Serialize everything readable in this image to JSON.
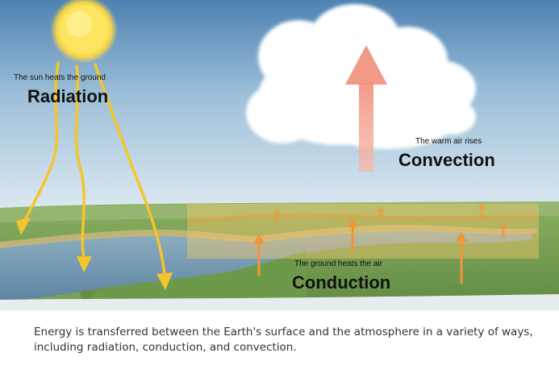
{
  "radiation": {
    "caption": "The sun heats the ground",
    "title": "Radiation"
  },
  "convection": {
    "caption": "The warm air rises",
    "title": "Convection"
  },
  "conduction": {
    "caption": "The ground heats the air",
    "title": "Conduction"
  },
  "description": "Energy is transferred between the Earth's surface and the atmosphere in a variety of ways, including radiation, conduction, and convection.",
  "colors": {
    "sky_top": "#4d82b2",
    "sky_bottom": "#d7e6f0",
    "grass": "#7ea85b",
    "river": "#6f95ad",
    "sun": "#fde562",
    "ray": "#f5c52c",
    "convection_arrow": "#f4a28d",
    "conduction_arrow": "#f39536"
  }
}
